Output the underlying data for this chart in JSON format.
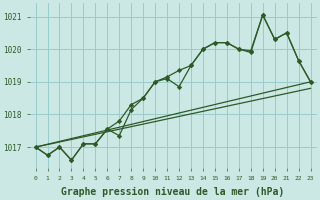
{
  "background_color": "#cce8e4",
  "grid_color": "#99cccc",
  "line_color": "#2d5a27",
  "marker_color": "#2d5a27",
  "xlabel": "Graphe pression niveau de la mer (hPa)",
  "xlabel_fontsize": 7.0,
  "ylabel_ticks": [
    1017,
    1018,
    1019,
    1020,
    1021
  ],
  "xlim": [
    -0.5,
    23.5
  ],
  "ylim": [
    1016.35,
    1021.4
  ],
  "series1": [
    [
      0,
      1017.0
    ],
    [
      1,
      1016.75
    ],
    [
      2,
      1017.0
    ],
    [
      3,
      1016.6
    ],
    [
      4,
      1017.1
    ],
    [
      5,
      1017.1
    ],
    [
      6,
      1017.55
    ],
    [
      7,
      1017.35
    ],
    [
      8,
      1018.15
    ],
    [
      9,
      1018.5
    ],
    [
      10,
      1019.0
    ],
    [
      11,
      1019.1
    ],
    [
      12,
      1018.85
    ],
    [
      13,
      1019.5
    ],
    [
      14,
      1020.0
    ],
    [
      15,
      1020.2
    ],
    [
      16,
      1020.2
    ],
    [
      17,
      1020.0
    ],
    [
      18,
      1019.95
    ],
    [
      19,
      1021.05
    ],
    [
      20,
      1020.3
    ],
    [
      21,
      1020.5
    ],
    [
      22,
      1019.65
    ],
    [
      23,
      1019.0
    ]
  ],
  "series2": [
    [
      0,
      1017.0
    ],
    [
      1,
      1016.75
    ],
    [
      2,
      1017.0
    ],
    [
      3,
      1016.6
    ],
    [
      4,
      1017.1
    ],
    [
      5,
      1017.1
    ],
    [
      6,
      1017.55
    ],
    [
      7,
      1017.8
    ],
    [
      8,
      1018.3
    ],
    [
      9,
      1018.5
    ],
    [
      10,
      1019.0
    ],
    [
      11,
      1019.15
    ],
    [
      12,
      1019.35
    ],
    [
      13,
      1019.5
    ],
    [
      14,
      1020.0
    ],
    [
      15,
      1020.2
    ],
    [
      16,
      1020.2
    ],
    [
      17,
      1020.0
    ],
    [
      18,
      1019.9
    ],
    [
      19,
      1021.05
    ],
    [
      20,
      1020.3
    ],
    [
      21,
      1020.5
    ],
    [
      22,
      1019.65
    ],
    [
      23,
      1019.0
    ]
  ],
  "series_linear1": [
    [
      0,
      1017.0
    ],
    [
      23,
      1019.0
    ]
  ],
  "series_linear2": [
    [
      0,
      1017.0
    ],
    [
      23,
      1018.8
    ]
  ]
}
